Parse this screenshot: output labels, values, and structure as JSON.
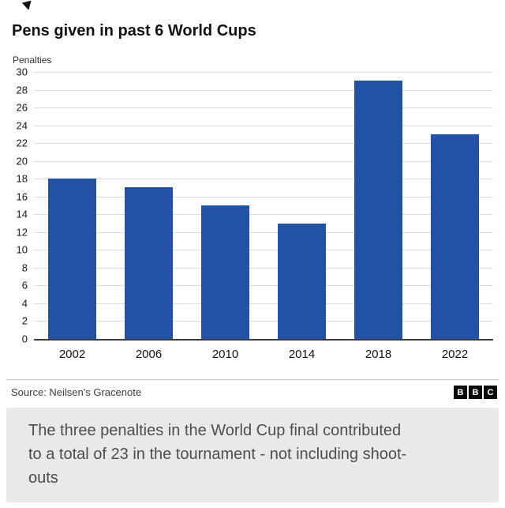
{
  "page": {
    "title": "Pens given in past 6 World Cups"
  },
  "chart_data": {
    "type": "bar",
    "title": "Pens given in past 6 World Cups",
    "xlabel": "",
    "ylabel": "Penalties",
    "categories": [
      "2002",
      "2006",
      "2010",
      "2014",
      "2018",
      "2022"
    ],
    "values": [
      18,
      17,
      15,
      13,
      29,
      23
    ],
    "ylim": [
      0,
      30
    ],
    "ytick_step": 2,
    "grid": true,
    "legend": "none",
    "bar_color": "#2152a3"
  },
  "footer": {
    "source": "Source: Neilsen's Gracenote",
    "logo_letters": [
      "B",
      "B",
      "C"
    ]
  },
  "caption": {
    "text": "The three penalties in the World Cup final contributed to a total of 23 in the tournament - not including shoot-outs"
  }
}
